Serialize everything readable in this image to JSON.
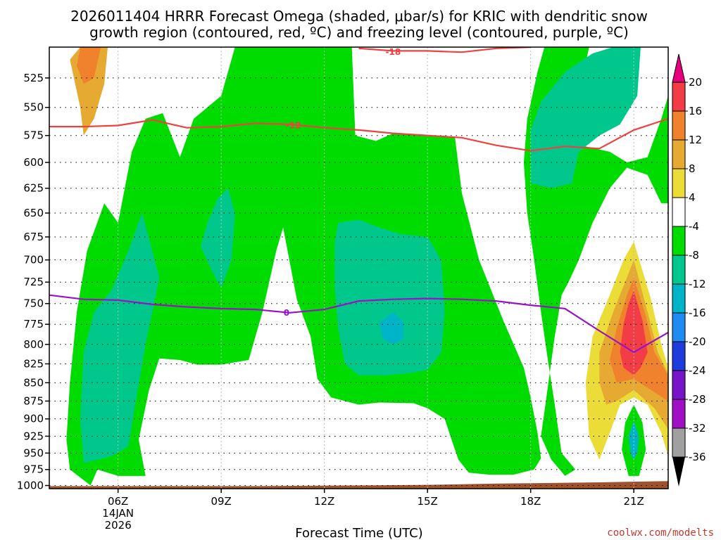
{
  "title_line1": "2026011404 HRRR Forecast Omega (shaded, μbar/s) for KRIC with dendritic snow",
  "title_line2": "growth region (contoured, red, ºC) and freezing level (contoured, purple, ºC)",
  "credit": "coolwx.com/modelts",
  "chart_data": {
    "type": "time-height cross section",
    "xlabel": "Forecast Time (UTC)",
    "ylabel": "",
    "x_ticks": [
      {
        "hour": 6,
        "label": "06Z",
        "sub1": "14JAN",
        "sub2": "2026"
      },
      {
        "hour": 9,
        "label": "09Z",
        "sub1": "",
        "sub2": ""
      },
      {
        "hour": 12,
        "label": "12Z",
        "sub1": "",
        "sub2": ""
      },
      {
        "hour": 15,
        "label": "15Z",
        "sub1": "",
        "sub2": ""
      },
      {
        "hour": 18,
        "label": "18Z",
        "sub1": "",
        "sub2": ""
      },
      {
        "hour": 21,
        "label": "21Z",
        "sub1": "",
        "sub2": ""
      }
    ],
    "xlim": [
      4.0,
      22.0
    ],
    "y_ticks": [
      525,
      550,
      575,
      600,
      625,
      650,
      675,
      700,
      725,
      750,
      775,
      800,
      825,
      850,
      875,
      900,
      925,
      950,
      975,
      1000
    ],
    "ylim_hpa": [
      500,
      1005
    ],
    "grid": true,
    "colorbar": {
      "levels": [
        20,
        16,
        12,
        8,
        4,
        -4,
        -8,
        -12,
        -16,
        -20,
        -24,
        -28,
        -32,
        -36
      ],
      "colors": [
        "#f23c46",
        "#f0822d",
        "#e6aa32",
        "#ebdc37",
        "#ffffff",
        "#00dc00",
        "#00c88c",
        "#00b4c8",
        "#1e8cf0",
        "#1e3cdc",
        "#7814c8",
        "#a00fc3",
        "#a0a0a0"
      ],
      "top_arrow_color": "#e6007d",
      "bottom_arrow_color": "#000000",
      "placement": "right"
    },
    "contours": [
      {
        "color": "#f04040",
        "label": "-18",
        "label_at": [
          14.0,
          504
        ],
        "points": [
          [
            13.0,
            501
          ],
          [
            14.0,
            503
          ],
          [
            15.0,
            503
          ],
          [
            16.0,
            504
          ],
          [
            17.0,
            501
          ],
          [
            18.0,
            500
          ]
        ]
      },
      {
        "color": "#f04040",
        "label": "-12",
        "label_at": [
          11.1,
          566
        ],
        "points": [
          [
            4.0,
            567
          ],
          [
            5.0,
            567
          ],
          [
            6.0,
            566
          ],
          [
            7.0,
            561
          ],
          [
            8.0,
            568
          ],
          [
            9.0,
            567
          ],
          [
            10.0,
            564
          ],
          [
            11.0,
            565
          ],
          [
            12.0,
            568
          ],
          [
            13.0,
            570
          ],
          [
            14.0,
            573
          ],
          [
            15.0,
            575
          ],
          [
            16.0,
            577
          ],
          [
            17.0,
            584
          ],
          [
            18.0,
            589
          ],
          [
            19.0,
            585
          ],
          [
            20.0,
            587
          ],
          [
            21.0,
            570
          ],
          [
            22.0,
            560
          ]
        ]
      },
      {
        "color": "#9a11c8",
        "label": "0",
        "label_at": [
          10.9,
          761
        ],
        "points": [
          [
            4.0,
            740
          ],
          [
            5.0,
            745
          ],
          [
            6.0,
            746
          ],
          [
            7.0,
            751
          ],
          [
            8.0,
            754
          ],
          [
            9.0,
            756
          ],
          [
            10.0,
            757
          ],
          [
            11.0,
            761
          ],
          [
            12.0,
            757
          ],
          [
            13.0,
            747
          ],
          [
            14.0,
            745
          ],
          [
            15.0,
            744
          ],
          [
            16.0,
            745
          ],
          [
            17.0,
            747
          ],
          [
            18.0,
            752
          ],
          [
            19.0,
            756
          ],
          [
            20.0,
            783
          ],
          [
            21.0,
            810
          ],
          [
            22.0,
            785
          ]
        ]
      }
    ],
    "shaded_regions": [
      {
        "level": -4,
        "points": [
          [
            5.2,
            1000
          ],
          [
            4.6,
            975
          ],
          [
            4.5,
            930
          ],
          [
            4.6,
            850
          ],
          [
            4.8,
            760
          ],
          [
            5.1,
            690
          ],
          [
            5.6,
            640
          ],
          [
            6.0,
            660
          ],
          [
            6.4,
            590
          ],
          [
            6.8,
            560
          ],
          [
            7.3,
            555
          ],
          [
            7.8,
            595
          ],
          [
            8.2,
            560
          ],
          [
            9.0,
            540
          ],
          [
            9.4,
            500
          ],
          [
            12.8,
            500
          ],
          [
            12.9,
            575
          ],
          [
            13.5,
            580
          ],
          [
            14.0,
            573
          ],
          [
            15.0,
            575
          ],
          [
            15.8,
            577
          ],
          [
            16.0,
            630
          ],
          [
            16.5,
            700
          ],
          [
            17.2,
            770
          ],
          [
            17.8,
            830
          ],
          [
            18.0,
            870
          ],
          [
            18.2,
            920
          ],
          [
            18.3,
            958
          ],
          [
            18.1,
            975
          ],
          [
            17.5,
            983
          ],
          [
            16.8,
            983
          ],
          [
            16.2,
            980
          ],
          [
            15.9,
            960
          ],
          [
            15.7,
            930
          ],
          [
            15.5,
            900
          ],
          [
            15.0,
            885
          ],
          [
            14.6,
            878
          ],
          [
            13.6,
            877
          ],
          [
            13.0,
            880
          ],
          [
            12.2,
            870
          ],
          [
            11.8,
            845
          ],
          [
            11.6,
            790
          ],
          [
            11.2,
            745
          ],
          [
            10.8,
            665
          ],
          [
            10.6,
            690
          ],
          [
            10.2,
            760
          ],
          [
            9.8,
            820
          ],
          [
            9.0,
            826
          ],
          [
            8.3,
            826
          ],
          [
            7.8,
            820
          ],
          [
            7.2,
            818
          ],
          [
            6.9,
            860
          ],
          [
            6.6,
            930
          ],
          [
            6.8,
            985
          ],
          [
            6.0,
            985
          ],
          [
            5.4,
            975
          ]
        ]
      },
      {
        "level": -4,
        "points": [
          [
            18.4,
            500
          ],
          [
            19.7,
            500
          ],
          [
            19.4,
            540
          ],
          [
            19.6,
            585
          ],
          [
            20.3,
            590
          ],
          [
            20.8,
            600
          ],
          [
            21.4,
            595
          ],
          [
            21.8,
            560
          ],
          [
            22.0,
            540
          ],
          [
            22.0,
            640
          ],
          [
            21.8,
            640
          ],
          [
            21.4,
            612
          ],
          [
            20.8,
            605
          ],
          [
            20.3,
            625
          ],
          [
            19.8,
            660
          ],
          [
            19.4,
            700
          ],
          [
            19.1,
            725
          ],
          [
            18.9,
            740
          ],
          [
            18.7,
            790
          ],
          [
            18.4,
            890
          ],
          [
            18.3,
            925
          ],
          [
            18.6,
            960
          ],
          [
            19.0,
            985
          ],
          [
            19.3,
            975
          ],
          [
            18.9,
            950
          ],
          [
            18.7,
            880
          ],
          [
            18.5,
            820
          ],
          [
            18.3,
            760
          ],
          [
            18.1,
            700
          ],
          [
            17.9,
            650
          ],
          [
            17.8,
            600
          ],
          [
            17.9,
            560
          ],
          [
            18.2,
            520
          ]
        ]
      },
      {
        "level": -4,
        "points": [
          [
            21.0,
            880
          ],
          [
            21.25,
            905
          ],
          [
            21.35,
            945
          ],
          [
            21.15,
            985
          ],
          [
            20.85,
            985
          ],
          [
            20.65,
            945
          ],
          [
            20.75,
            905
          ]
        ]
      },
      {
        "level": -8,
        "points": [
          [
            5.0,
            965
          ],
          [
            4.9,
            900
          ],
          [
            5.0,
            810
          ],
          [
            5.3,
            760
          ],
          [
            5.8,
            735
          ],
          [
            6.3,
            690
          ],
          [
            6.7,
            650
          ],
          [
            7.2,
            720
          ],
          [
            6.8,
            800
          ],
          [
            6.5,
            880
          ],
          [
            6.3,
            940
          ],
          [
            5.8,
            955
          ]
        ]
      },
      {
        "level": -8,
        "points": [
          [
            9.2,
            625
          ],
          [
            9.4,
            650
          ],
          [
            9.3,
            700
          ],
          [
            9.0,
            732
          ],
          [
            8.7,
            710
          ],
          [
            8.4,
            685
          ],
          [
            8.6,
            660
          ],
          [
            8.9,
            635
          ]
        ]
      },
      {
        "level": -8,
        "points": [
          [
            12.3,
            680
          ],
          [
            12.4,
            660
          ],
          [
            13.0,
            657
          ],
          [
            13.6,
            665
          ],
          [
            14.2,
            672
          ],
          [
            15.0,
            675
          ],
          [
            15.4,
            700
          ],
          [
            15.5,
            760
          ],
          [
            15.4,
            810
          ],
          [
            15.0,
            833
          ],
          [
            14.5,
            837
          ],
          [
            13.8,
            840
          ],
          [
            13.0,
            840
          ],
          [
            12.6,
            825
          ],
          [
            12.4,
            780
          ],
          [
            12.3,
            730
          ]
        ]
      },
      {
        "level": -8,
        "points": [
          [
            18.0,
            620
          ],
          [
            18.0,
            570
          ],
          [
            18.3,
            545
          ],
          [
            19.0,
            520
          ],
          [
            19.8,
            505
          ],
          [
            20.4,
            500
          ],
          [
            21.2,
            500
          ],
          [
            21.1,
            540
          ],
          [
            20.6,
            565
          ],
          [
            20.0,
            575
          ],
          [
            19.4,
            590
          ],
          [
            19.2,
            620
          ],
          [
            18.6,
            625
          ]
        ]
      },
      {
        "level": -12,
        "points": [
          [
            14.0,
            760
          ],
          [
            14.3,
            773
          ],
          [
            14.3,
            793
          ],
          [
            14.0,
            800
          ],
          [
            13.7,
            793
          ],
          [
            13.6,
            773
          ]
        ]
      },
      {
        "level": -12,
        "points": [
          [
            21.0,
            903
          ],
          [
            21.15,
            925
          ],
          [
            21.1,
            950
          ],
          [
            21.0,
            960
          ],
          [
            20.9,
            950
          ],
          [
            20.85,
            925
          ]
        ]
      },
      {
        "level": 4,
        "points": [
          [
            21.0,
            680
          ],
          [
            21.5,
            745
          ],
          [
            21.8,
            800
          ],
          [
            22.0,
            830
          ],
          [
            22.0,
            955
          ],
          [
            21.8,
            920
          ],
          [
            21.4,
            880
          ],
          [
            21.0,
            870
          ],
          [
            20.6,
            880
          ],
          [
            20.3,
            920
          ],
          [
            20.0,
            960
          ],
          [
            19.7,
            925
          ],
          [
            19.6,
            850
          ],
          [
            19.8,
            790
          ],
          [
            20.3,
            740
          ],
          [
            20.7,
            700
          ]
        ]
      },
      {
        "level": 8,
        "points": [
          [
            21.0,
            700
          ],
          [
            21.4,
            760
          ],
          [
            21.7,
            810
          ],
          [
            22.0,
            838
          ],
          [
            22.0,
            915
          ],
          [
            21.6,
            885
          ],
          [
            21.0,
            860
          ],
          [
            20.5,
            875
          ],
          [
            20.2,
            880
          ],
          [
            20.0,
            850
          ],
          [
            20.0,
            810
          ],
          [
            20.4,
            760
          ],
          [
            20.8,
            720
          ]
        ]
      },
      {
        "level": 8,
        "points": [
          [
            4.9,
            500
          ],
          [
            5.7,
            500
          ],
          [
            5.6,
            530
          ],
          [
            5.3,
            560
          ],
          [
            5.0,
            575
          ],
          [
            4.9,
            550
          ],
          [
            4.6,
            510
          ]
        ]
      },
      {
        "level": 12,
        "points": [
          [
            21.0,
            720
          ],
          [
            21.35,
            765
          ],
          [
            21.6,
            810
          ],
          [
            22.0,
            840
          ],
          [
            22.0,
            875
          ],
          [
            21.5,
            860
          ],
          [
            21.0,
            845
          ],
          [
            20.5,
            850
          ],
          [
            20.3,
            820
          ],
          [
            20.5,
            780
          ],
          [
            20.8,
            740
          ]
        ]
      },
      {
        "level": 12,
        "points": [
          [
            4.9,
            500
          ],
          [
            5.5,
            500
          ],
          [
            5.3,
            525
          ],
          [
            5.0,
            530
          ],
          [
            4.8,
            515
          ]
        ]
      },
      {
        "level": 16,
        "points": [
          [
            21.0,
            735
          ],
          [
            21.25,
            770
          ],
          [
            21.4,
            810
          ],
          [
            21.2,
            830
          ],
          [
            21.0,
            840
          ],
          [
            20.7,
            830
          ],
          [
            20.6,
            810
          ],
          [
            20.7,
            775
          ],
          [
            20.85,
            750
          ]
        ]
      },
      {
        "level": 20,
        "points": [
          [
            21.0,
            745
          ],
          [
            21.15,
            775
          ],
          [
            21.2,
            805
          ],
          [
            21.0,
            820
          ],
          [
            20.8,
            805
          ],
          [
            20.82,
            775
          ],
          [
            20.9,
            755
          ]
        ]
      }
    ],
    "terrain": {
      "color": "#a0522d",
      "points": [
        [
          4.0,
          1001
        ],
        [
          10.0,
          1001
        ],
        [
          15.0,
          999
        ],
        [
          17.0,
          997
        ],
        [
          20.0,
          995
        ],
        [
          22.0,
          993
        ]
      ]
    }
  }
}
